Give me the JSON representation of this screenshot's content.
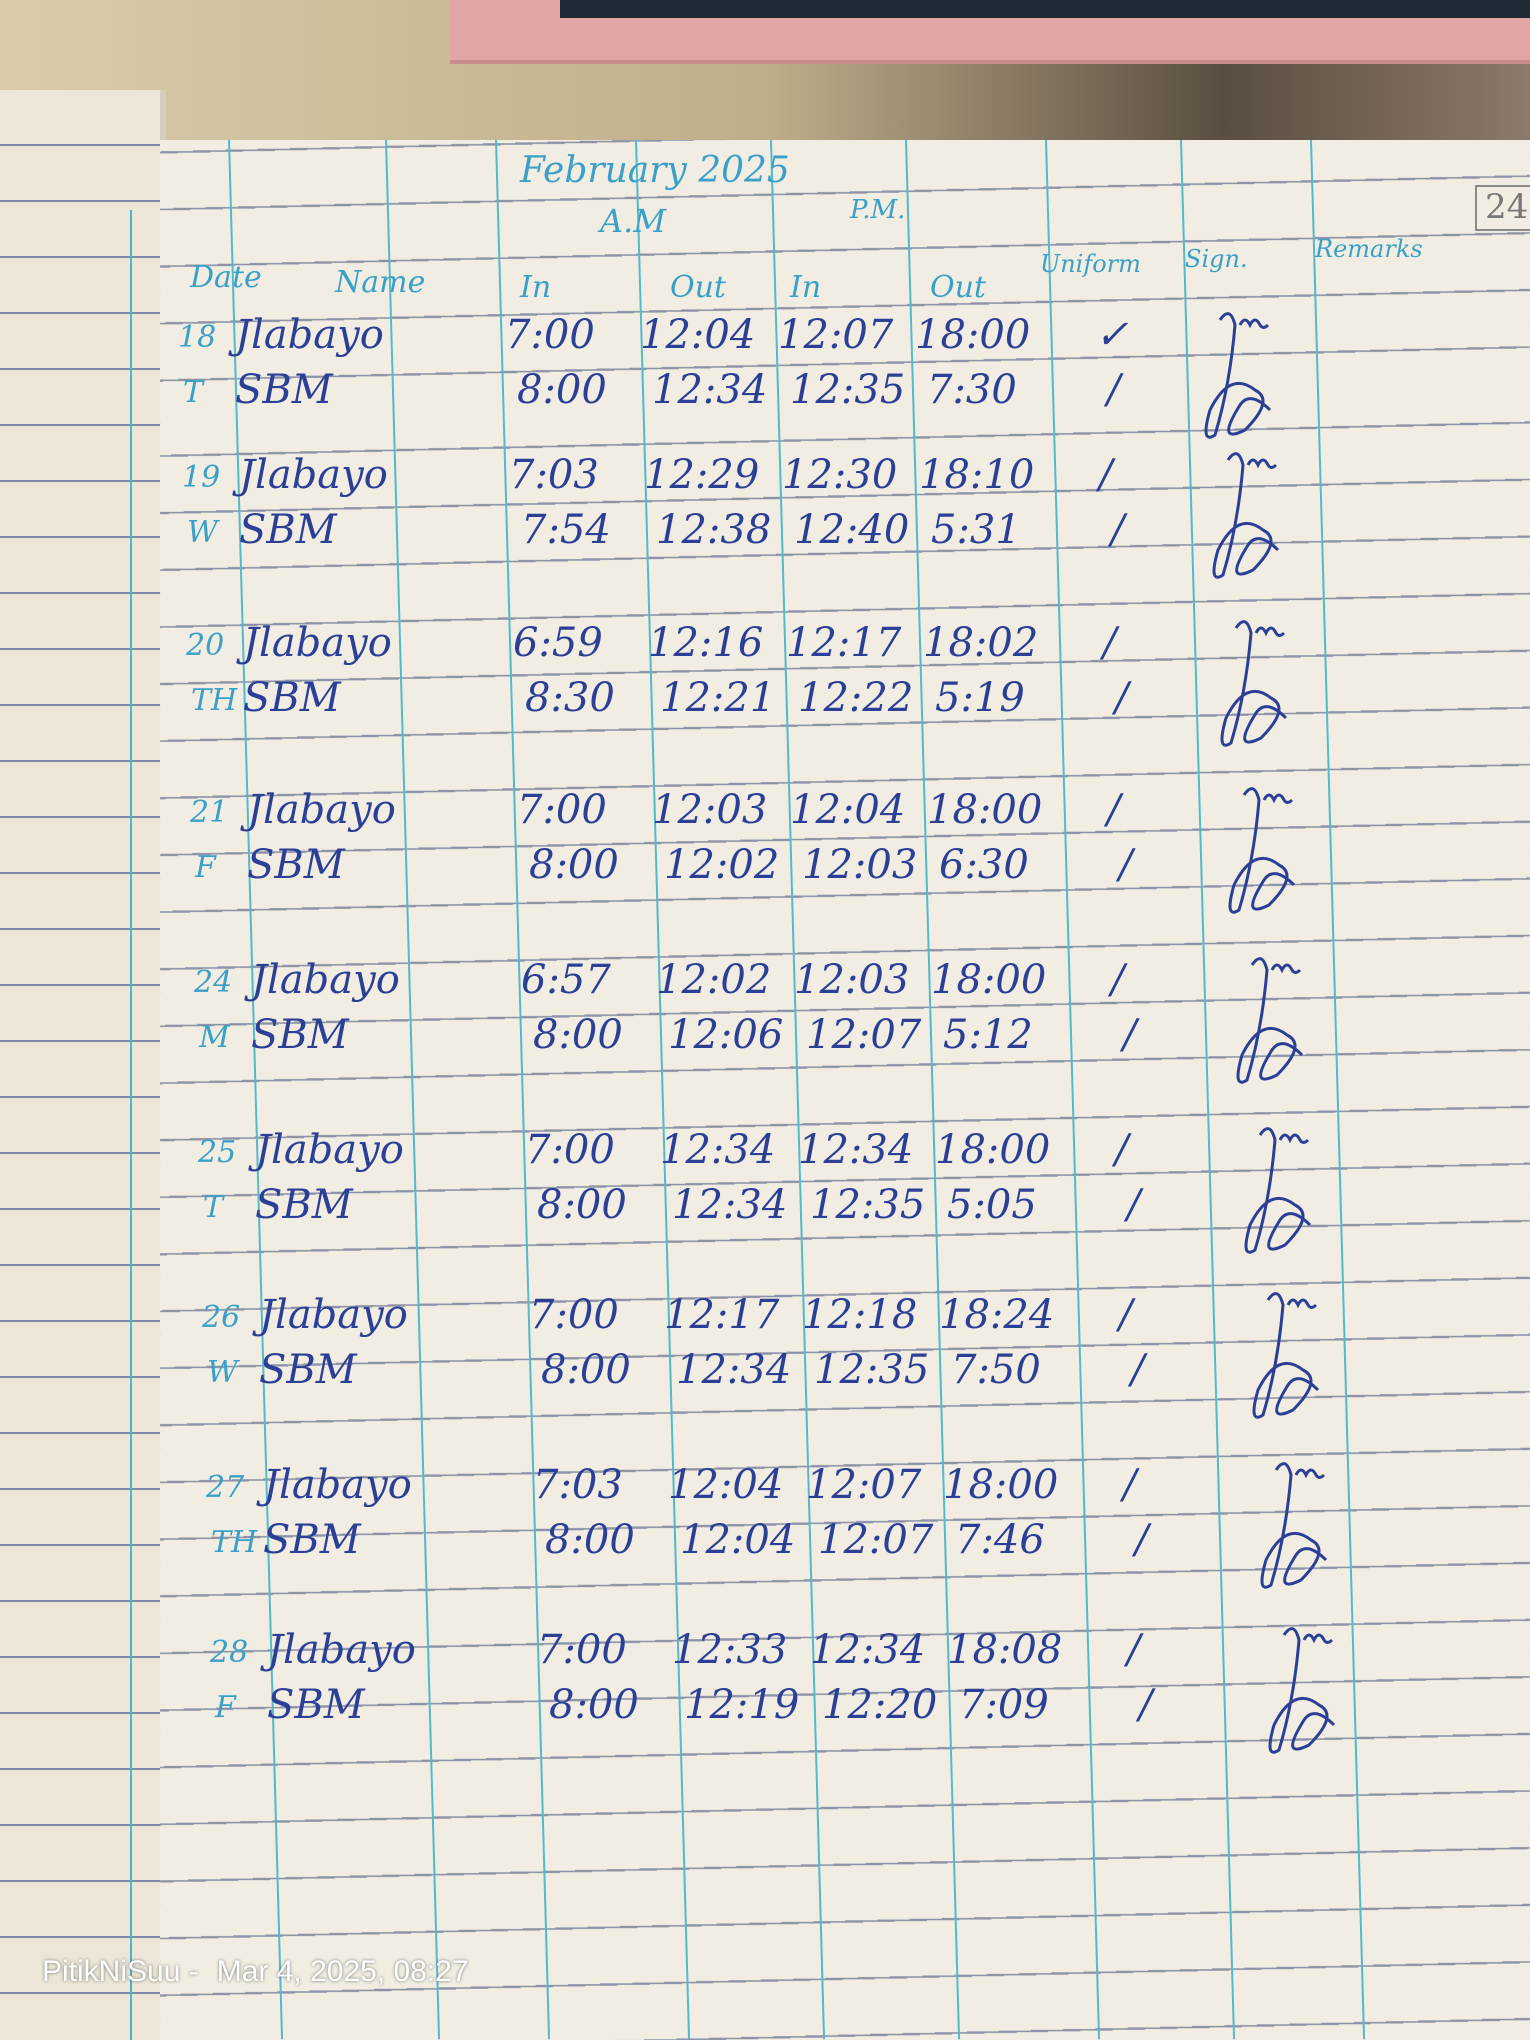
{
  "header": {
    "month_year": "February 2025",
    "am_label": "A.M",
    "pm_label": "P.M.",
    "page_number": "24",
    "columns": [
      "Date",
      "Name",
      "In",
      "Out",
      "In",
      "Out",
      "Uniform",
      "Sign.",
      "Remarks"
    ]
  },
  "entries": [
    {
      "date": "18",
      "day": "T",
      "rows": [
        {
          "name": "Jlabayo",
          "am_in": "7:00",
          "am_out": "12:04",
          "pm_in": "12:07",
          "pm_out": "18:00",
          "uniform": "✓"
        },
        {
          "name": "SBM",
          "am_in": "8:00",
          "am_out": "12:34",
          "pm_in": "12:35",
          "pm_out": "7:30",
          "uniform": "/"
        }
      ]
    },
    {
      "date": "19",
      "day": "W",
      "rows": [
        {
          "name": "Jlabayo",
          "am_in": "7:03",
          "am_out": "12:29",
          "pm_in": "12:30",
          "pm_out": "18:10",
          "uniform": "/"
        },
        {
          "name": "SBM",
          "am_in": "7:54",
          "am_out": "12:38",
          "pm_in": "12:40",
          "pm_out": "5:31",
          "uniform": "/"
        }
      ]
    },
    {
      "date": "20",
      "day": "TH",
      "rows": [
        {
          "name": "Jlabayo",
          "am_in": "6:59",
          "am_out": "12:16",
          "pm_in": "12:17",
          "pm_out": "18:02",
          "uniform": "/"
        },
        {
          "name": "SBM",
          "am_in": "8:30",
          "am_out": "12:21",
          "pm_in": "12:22",
          "pm_out": "5:19",
          "uniform": "/"
        }
      ]
    },
    {
      "date": "21",
      "day": "F",
      "rows": [
        {
          "name": "Jlabayo",
          "am_in": "7:00",
          "am_out": "12:03",
          "pm_in": "12:04",
          "pm_out": "18:00",
          "uniform": "/"
        },
        {
          "name": "SBM",
          "am_in": "8:00",
          "am_out": "12:02",
          "pm_in": "12:03",
          "pm_out": "6:30",
          "uniform": "/"
        }
      ]
    },
    {
      "date": "24",
      "day": "M",
      "rows": [
        {
          "name": "Jlabayo",
          "am_in": "6:57",
          "am_out": "12:02",
          "pm_in": "12:03",
          "pm_out": "18:00",
          "uniform": "/"
        },
        {
          "name": "SBM",
          "am_in": "8:00",
          "am_out": "12:06",
          "pm_in": "12:07",
          "pm_out": "5:12",
          "uniform": "/"
        }
      ]
    },
    {
      "date": "25",
      "day": "T",
      "rows": [
        {
          "name": "Jlabayo",
          "am_in": "7:00",
          "am_out": "12:34",
          "pm_in": "12:34",
          "pm_out": "18:00",
          "uniform": "/"
        },
        {
          "name": "SBM",
          "am_in": "8:00",
          "am_out": "12:34",
          "pm_in": "12:35",
          "pm_out": "5:05",
          "uniform": "/"
        }
      ]
    },
    {
      "date": "26",
      "day": "W",
      "rows": [
        {
          "name": "Jlabayo",
          "am_in": "7:00",
          "am_out": "12:17",
          "pm_in": "12:18",
          "pm_out": "18:24",
          "uniform": "/"
        },
        {
          "name": "SBM",
          "am_in": "8:00",
          "am_out": "12:34",
          "pm_in": "12:35",
          "pm_out": "7:50",
          "uniform": "/"
        }
      ]
    },
    {
      "date": "27",
      "day": "TH",
      "rows": [
        {
          "name": "Jlabayo",
          "am_in": "7:03",
          "am_out": "12:04",
          "pm_in": "12:07",
          "pm_out": "18:00",
          "uniform": "/"
        },
        {
          "name": "SBM",
          "am_in": "8:00",
          "am_out": "12:04",
          "pm_in": "12:07",
          "pm_out": "7:46",
          "uniform": "/"
        }
      ]
    },
    {
      "date": "28",
      "day": "F",
      "rows": [
        {
          "name": "Jlabayo",
          "am_in": "7:00",
          "am_out": "12:33",
          "pm_in": "12:34",
          "pm_out": "18:08",
          "uniform": "/"
        },
        {
          "name": "SBM",
          "am_in": "8:00",
          "am_out": "12:19",
          "pm_in": "12:20",
          "pm_out": "7:09",
          "uniform": "/"
        }
      ]
    }
  ],
  "watermark": {
    "author": "PitikNiSuu -",
    "datetime": "Mar 4, 2025, 08:27"
  },
  "colors": {
    "ink": "#2c3f96",
    "header_ink": "#3aa0c8",
    "paper": "#f1ede2",
    "rule_blue": "#55b9cc"
  }
}
